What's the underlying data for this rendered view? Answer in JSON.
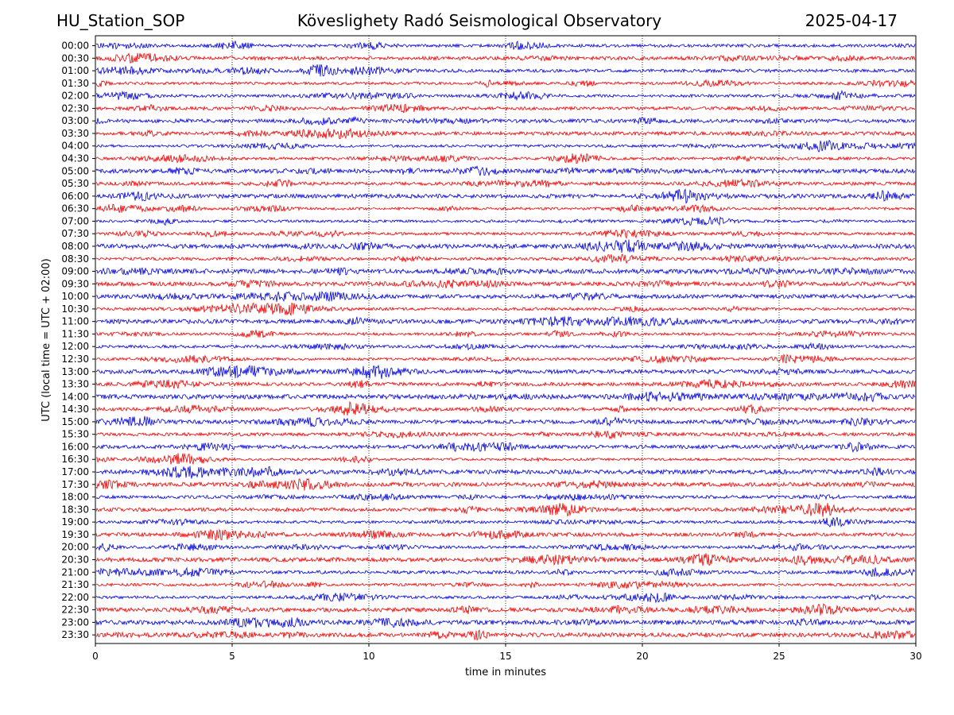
{
  "header": {
    "station": "HU_Station_SOP",
    "title": "Köveslighety Radó Seismological Observatory",
    "date": "2025-04-17"
  },
  "colors": {
    "even_trace": "#0000dd",
    "odd_trace": "#ee0000",
    "grid": "#000000"
  },
  "chart_data": {
    "type": "line",
    "title": "Köveslighety Radó Seismological Observatory",
    "xlabel": "time in minutes",
    "ylabel": "UTC (local time = UTC + 02:00)",
    "xlim": [
      0,
      30
    ],
    "x_ticks": [
      0,
      5,
      10,
      15,
      20,
      25,
      30
    ],
    "grid": "vertical dotted at x ticks",
    "traces": [
      {
        "label": "00:00",
        "color": "blue"
      },
      {
        "label": "00:30",
        "color": "red"
      },
      {
        "label": "01:00",
        "color": "blue"
      },
      {
        "label": "01:30",
        "color": "red"
      },
      {
        "label": "02:00",
        "color": "blue"
      },
      {
        "label": "02:30",
        "color": "red"
      },
      {
        "label": "03:00",
        "color": "blue"
      },
      {
        "label": "03:30",
        "color": "red"
      },
      {
        "label": "04:00",
        "color": "blue"
      },
      {
        "label": "04:30",
        "color": "red"
      },
      {
        "label": "05:00",
        "color": "blue"
      },
      {
        "label": "05:30",
        "color": "red"
      },
      {
        "label": "06:00",
        "color": "blue"
      },
      {
        "label": "06:30",
        "color": "red"
      },
      {
        "label": "07:00",
        "color": "blue"
      },
      {
        "label": "07:30",
        "color": "red"
      },
      {
        "label": "08:00",
        "color": "blue"
      },
      {
        "label": "08:30",
        "color": "red"
      },
      {
        "label": "09:00",
        "color": "blue"
      },
      {
        "label": "09:30",
        "color": "red"
      },
      {
        "label": "10:00",
        "color": "blue"
      },
      {
        "label": "10:30",
        "color": "red"
      },
      {
        "label": "11:00",
        "color": "blue"
      },
      {
        "label": "11:30",
        "color": "red"
      },
      {
        "label": "12:00",
        "color": "blue"
      },
      {
        "label": "12:30",
        "color": "red"
      },
      {
        "label": "13:00",
        "color": "blue"
      },
      {
        "label": "13:30",
        "color": "red"
      },
      {
        "label": "14:00",
        "color": "blue"
      },
      {
        "label": "14:30",
        "color": "red"
      },
      {
        "label": "15:00",
        "color": "blue"
      },
      {
        "label": "15:30",
        "color": "red"
      },
      {
        "label": "16:00",
        "color": "blue"
      },
      {
        "label": "16:30",
        "color": "red"
      },
      {
        "label": "17:00",
        "color": "blue"
      },
      {
        "label": "17:30",
        "color": "red"
      },
      {
        "label": "18:00",
        "color": "blue"
      },
      {
        "label": "18:30",
        "color": "red"
      },
      {
        "label": "19:00",
        "color": "blue"
      },
      {
        "label": "19:30",
        "color": "red"
      },
      {
        "label": "20:00",
        "color": "blue"
      },
      {
        "label": "20:30",
        "color": "red"
      },
      {
        "label": "21:00",
        "color": "blue"
      },
      {
        "label": "21:30",
        "color": "red"
      },
      {
        "label": "22:00",
        "color": "blue"
      },
      {
        "label": "22:30",
        "color": "red"
      },
      {
        "label": "23:00",
        "color": "blue"
      },
      {
        "label": "23:30",
        "color": "red"
      }
    ]
  }
}
